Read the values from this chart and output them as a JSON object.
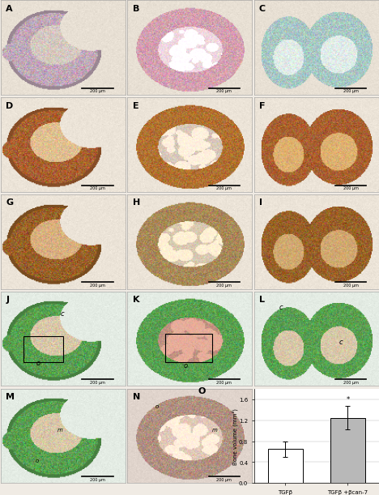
{
  "panel_labels": [
    "A",
    "B",
    "C",
    "D",
    "E",
    "F",
    "G",
    "H",
    "I",
    "J",
    "K",
    "L",
    "M",
    "N",
    "O"
  ],
  "bar_values": [
    0.65,
    1.25
  ],
  "bar_errors": [
    0.15,
    0.22
  ],
  "bar_colors": [
    "#ffffff",
    "#b8b8b8"
  ],
  "bar_labels": [
    "TGFβ",
    "TGFβ +βcan-7"
  ],
  "ylabel": "Bone volume (mm³)",
  "ylim": [
    0.0,
    1.8
  ],
  "yticks": [
    0.0,
    0.4,
    0.8,
    1.2,
    1.6
  ],
  "significance": "*",
  "scale_bar_text": "200 μm",
  "label_fontsize": 8,
  "tick_fontsize": 5,
  "axis_label_fontsize": 5,
  "figure_bg": "#f0ebe4",
  "panel_bg": "#f0ebe4",
  "panels": {
    "A": {
      "bg": "#e8e0d4",
      "type": "sagitta",
      "main_color": "#c8b8c4",
      "rim_color": "#c0a8b8",
      "inner_color": "#d4c8c0",
      "teal_patch": true
    },
    "B": {
      "bg": "#e8e0d4",
      "type": "round",
      "main_color": "#e8b8c4",
      "rim_color": "#d4a0b0",
      "inner_color": "#f0d8e0"
    },
    "C": {
      "bg": "#e8e0d4",
      "type": "two_blobs",
      "main_color": "#d8e8e4",
      "rim_color": "#a8c8c4",
      "inner_color": "#e0ece8"
    },
    "D": {
      "bg": "#ece4d8",
      "type": "sagitta",
      "main_color": "#c88040",
      "rim_color": "#a86030",
      "inner_color": "#e0c090"
    },
    "E": {
      "bg": "#ece4d8",
      "type": "round",
      "main_color": "#c88840",
      "rim_color": "#b07030",
      "inner_color": "#d8c8b8"
    },
    "F": {
      "bg": "#ece4d8",
      "type": "two_blobs",
      "main_color": "#c87838",
      "rim_color": "#a86030",
      "inner_color": "#ddb070"
    },
    "G": {
      "bg": "#ece4d8",
      "type": "sagitta",
      "main_color": "#b87030",
      "rim_color": "#986028",
      "inner_color": "#d8b080"
    },
    "H": {
      "bg": "#ece4d8",
      "type": "round",
      "main_color": "#c0a880",
      "rim_color": "#a88858",
      "inner_color": "#d8c8b0"
    },
    "I": {
      "bg": "#ece4d8",
      "type": "two_blobs",
      "main_color": "#b87030",
      "rim_color": "#986028",
      "inner_color": "#d0a870"
    },
    "J": {
      "bg": "#e4ece4",
      "type": "sagitta_green",
      "main_color": "#80c078",
      "rim_color": "#58a050",
      "inner_color": "#d8c8a8",
      "label_c": "c",
      "label_o": "o"
    },
    "K": {
      "bg": "#e4ece4",
      "type": "round_green",
      "main_color": "#80c078",
      "rim_color": "#58a050",
      "inner_color": "#c09080"
    },
    "L": {
      "bg": "#e4ece4",
      "type": "two_blobs_green",
      "main_color": "#80c078",
      "rim_color": "#58a050",
      "inner_color": "#d8c8a8",
      "label_c": "c"
    },
    "M": {
      "bg": "#e4ece4",
      "type": "sagitta_green_zoom",
      "main_color": "#80c078",
      "rim_color": "#58a050",
      "inner_color": "#d8c8a8",
      "label_m": "m",
      "label_o": "o"
    },
    "N": {
      "bg": "#e0d4cc",
      "type": "round_zoom",
      "main_color": "#c8a898",
      "rim_color": "#b09080",
      "inner_color": "#e0c8b8",
      "label_o": "o",
      "label_m": "m"
    }
  }
}
